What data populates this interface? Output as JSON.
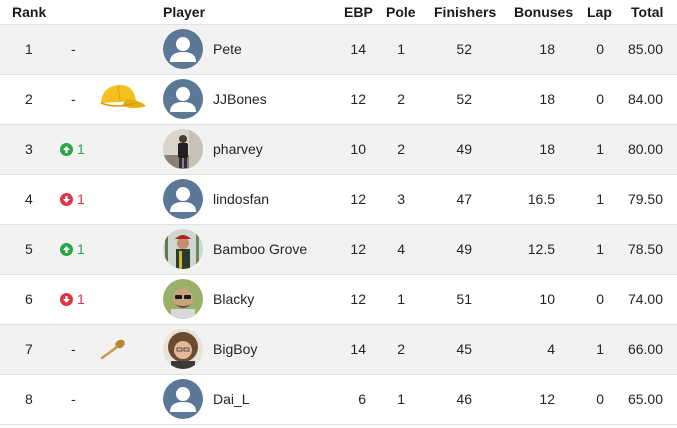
{
  "headers": {
    "rank": "Rank",
    "player": "Player",
    "ebp": "EBP",
    "pole": "Pole",
    "finishers": "Finishers",
    "bonuses": "Bonuses",
    "lap": "Lap",
    "total": "Total"
  },
  "rows": [
    {
      "rank": "1",
      "movement": "-",
      "direction": "none",
      "trophy": "",
      "avatar": "default-avatar",
      "name": "Pete",
      "ebp": "14",
      "pole": "1",
      "finishers": "52",
      "bonuses": "18",
      "lap": "0",
      "total": "85.00"
    },
    {
      "rank": "2",
      "movement": "-",
      "direction": "none",
      "trophy": "yellow-cap",
      "avatar": "default-avatar",
      "name": "JJBones",
      "ebp": "12",
      "pole": "2",
      "finishers": "52",
      "bonuses": "18",
      "lap": "0",
      "total": "84.00"
    },
    {
      "rank": "3",
      "movement": "1",
      "direction": "up",
      "trophy": "",
      "avatar": "photo-standing-man",
      "name": "pharvey",
      "ebp": "10",
      "pole": "2",
      "finishers": "49",
      "bonuses": "18",
      "lap": "1",
      "total": "80.00"
    },
    {
      "rank": "4",
      "movement": "1",
      "direction": "down",
      "trophy": "",
      "avatar": "default-avatar",
      "name": "lindosfan",
      "ebp": "12",
      "pole": "3",
      "finishers": "47",
      "bonuses": "16.5",
      "lap": "1",
      "total": "79.50"
    },
    {
      "rank": "5",
      "movement": "1",
      "direction": "up",
      "trophy": "",
      "avatar": "photo-bamboo-grove",
      "name": "Bamboo Grove",
      "ebp": "12",
      "pole": "4",
      "finishers": "49",
      "bonuses": "12.5",
      "lap": "1",
      "total": "78.50"
    },
    {
      "rank": "6",
      "movement": "1",
      "direction": "down",
      "trophy": "",
      "avatar": "photo-man-sunglasses",
      "name": "Blacky",
      "ebp": "12",
      "pole": "1",
      "finishers": "51",
      "bonuses": "10",
      "lap": "0",
      "total": "74.00"
    },
    {
      "rank": "7",
      "movement": "-",
      "direction": "none",
      "trophy": "wooden-spoon",
      "avatar": "photo-curly-hair",
      "name": "BigBoy",
      "ebp": "14",
      "pole": "2",
      "finishers": "45",
      "bonuses": "4",
      "lap": "1",
      "total": "66.00"
    },
    {
      "rank": "8",
      "movement": "-",
      "direction": "none",
      "trophy": "",
      "avatar": "default-avatar",
      "name": "Dai_L",
      "ebp": "6",
      "pole": "1",
      "finishers": "46",
      "bonuses": "12",
      "lap": "0",
      "total": "65.00"
    }
  ],
  "colors": {
    "up": "#28a745",
    "down": "#dc3545",
    "avatar_bg": "#5b7896",
    "stripe": "#f2f2f2"
  }
}
